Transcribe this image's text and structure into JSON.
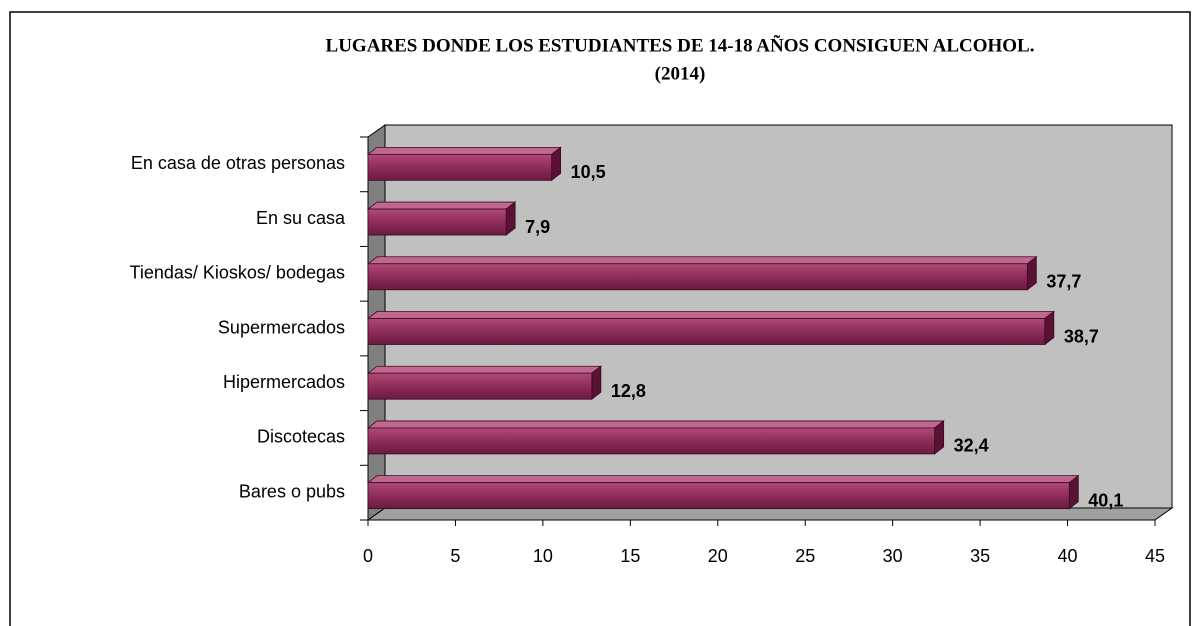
{
  "chart_data": {
    "type": "bar",
    "orientation": "horizontal",
    "title": "LUGARES  DONDE LOS ESTUDIANTES  DE 14-18 AÑOS CONSIGUEN  ALCOHOL.",
    "subtitle": "(2014)",
    "categories": [
      "En casa de otras personas",
      "En su casa",
      "Tiendas/ Kioskos/ bodegas",
      "Supermercados",
      "Hipermercados",
      "Discotecas",
      "Bares o pubs"
    ],
    "values": [
      10.5,
      7.9,
      37.7,
      38.7,
      12.8,
      32.4,
      40.1
    ],
    "value_labels": [
      "10,5",
      "7,9",
      "37,7",
      "38,7",
      "12,8",
      "32,4",
      "40,1"
    ],
    "color": "#8e2c5a",
    "xlim": [
      0,
      45
    ],
    "xticks": [
      0,
      5,
      10,
      15,
      20,
      25,
      30,
      35,
      40,
      45
    ]
  }
}
